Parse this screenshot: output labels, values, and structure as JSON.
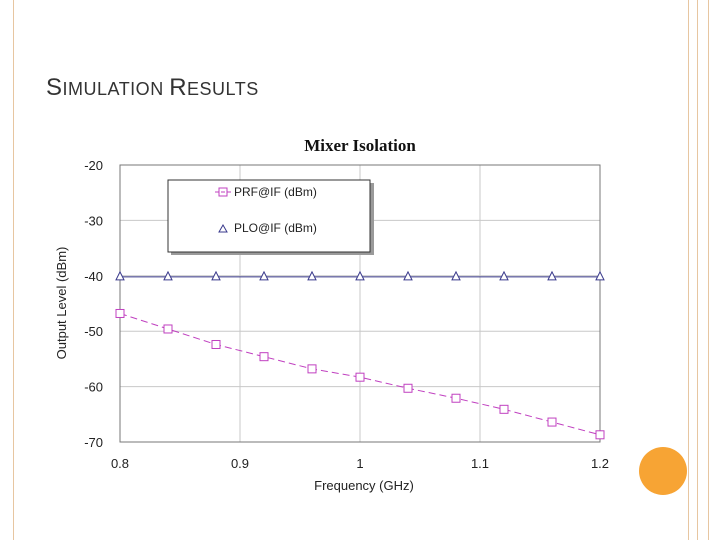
{
  "slide": {
    "title_parts": [
      {
        "big": "S",
        "small": "IMULATION "
      },
      {
        "big": "R",
        "small": "ESULTS"
      }
    ],
    "accent_color": "#f7a434",
    "border_color": "#e7c6a1"
  },
  "chart_data": {
    "type": "line",
    "title": "Mixer Isolation",
    "xlabel": "Frequency (GHz)",
    "ylabel": "Output Level (dBm)",
    "xlim": [
      0.8,
      1.2
    ],
    "ylim": [
      -70,
      -20
    ],
    "x_ticks": [
      "0.8",
      "0.9",
      "1",
      "1.1",
      "1.2"
    ],
    "y_ticks": [
      "-20",
      "-30",
      "-40",
      "-50",
      "-60",
      "-70"
    ],
    "grid": true,
    "legend_position": "top-left",
    "x": [
      0.8,
      0.84,
      0.88,
      0.92,
      0.96,
      1.0,
      1.04,
      1.08,
      1.12,
      1.16,
      1.2
    ],
    "series": [
      {
        "name": "PRF@IF (dBm)",
        "color": "#c040c0",
        "marker": "square",
        "style": "dashed",
        "values": [
          -46.8,
          -49.6,
          -52.4,
          -54.6,
          -56.8,
          -58.3,
          -60.3,
          -62.1,
          -64.1,
          -66.4,
          -68.7
        ]
      },
      {
        "name": "PLO@IF (dBm)",
        "color": "#3a3a8c",
        "marker": "triangle",
        "style": "solid",
        "values": [
          -40.2,
          -40.2,
          -40.2,
          -40.2,
          -40.2,
          -40.2,
          -40.2,
          -40.2,
          -40.2,
          -40.2,
          -40.2
        ]
      }
    ]
  }
}
